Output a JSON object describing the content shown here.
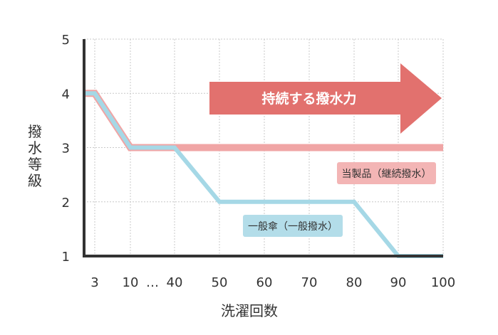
{
  "chart_data": {
    "type": "line",
    "xlabel": "洗濯回数",
    "ylabel": "撥水等級",
    "x_ticks": [
      "3",
      "10",
      "…",
      "40",
      "50",
      "60",
      "70",
      "80",
      "90",
      "100"
    ],
    "y_ticks": [
      "1",
      "2",
      "3",
      "4",
      "5"
    ],
    "ylim": [
      1,
      5
    ],
    "grid": true,
    "series": [
      {
        "name": "当製品（継続撥水）",
        "color": "#f0a5a5",
        "x": [
          "0",
          "3",
          "10",
          "40",
          "50",
          "60",
          "70",
          "80",
          "90",
          "100"
        ],
        "values": [
          4,
          4,
          3,
          3,
          3,
          3,
          3,
          3,
          3,
          3
        ]
      },
      {
        "name": "一般傘（一般撥水）",
        "color": "#a5d8e6",
        "x": [
          "0",
          "3",
          "10",
          "40",
          "50",
          "60",
          "70",
          "80",
          "90",
          "100"
        ],
        "values": [
          4,
          4,
          3,
          3,
          2,
          2,
          2,
          2,
          1,
          1
        ]
      }
    ],
    "annotations": [
      {
        "text": "持続する撥水力",
        "color": "#e2716e",
        "shape": "arrow"
      }
    ]
  }
}
